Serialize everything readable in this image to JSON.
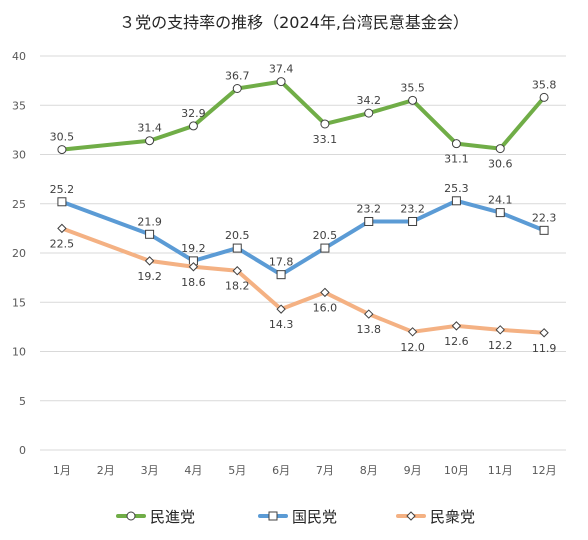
{
  "chart_data": {
    "type": "line",
    "title": "３党の支持率の推移（2024年,台湾民意基金会）",
    "categories": [
      "1月",
      "2月",
      "3月",
      "4月",
      "5月",
      "6月",
      "7月",
      "8月",
      "9月",
      "10月",
      "11月",
      "12月"
    ],
    "ylim": [
      0,
      40
    ],
    "yticks": [
      0,
      5,
      10,
      15,
      20,
      25,
      30,
      35,
      40
    ],
    "ytick_labels": [
      "0",
      "5",
      "10",
      "15",
      "20",
      "25",
      "30",
      "35",
      "40"
    ],
    "grid": true,
    "legend_position": "bottom",
    "series": [
      {
        "name": "民進党",
        "color": "#70AD47",
        "marker": "circle",
        "values": [
          30.5,
          null,
          31.4,
          32.9,
          36.7,
          37.4,
          33.1,
          34.2,
          35.5,
          31.1,
          30.6,
          35.8
        ],
        "labels": [
          "30.5",
          "",
          "31.4",
          "32.9",
          "36.7",
          "37.4",
          "33.1",
          "34.2",
          "35.5",
          "31.1",
          "30.6",
          "35.8"
        ]
      },
      {
        "name": "国民党",
        "color": "#5B9BD5",
        "marker": "square",
        "values": [
          25.2,
          null,
          21.9,
          19.2,
          20.5,
          17.8,
          20.5,
          23.2,
          23.2,
          25.3,
          24.1,
          22.3
        ],
        "labels": [
          "25.2",
          "",
          "21.9",
          "19.2",
          "20.5",
          "17.8",
          "20.5",
          "23.2",
          "23.2",
          "25.3",
          "24.1",
          "22.3"
        ]
      },
      {
        "name": "民衆党",
        "color": "#F4B183",
        "marker": "diamond",
        "values": [
          22.5,
          null,
          19.2,
          18.6,
          18.2,
          14.3,
          16.0,
          13.8,
          12.0,
          12.6,
          12.2,
          11.9
        ],
        "labels": [
          "22.5",
          "",
          "19.2",
          "18.6",
          "18.2",
          "14.3",
          "16.0",
          "13.8",
          "12.0",
          "12.6",
          "12.2",
          "11.9"
        ]
      }
    ]
  }
}
